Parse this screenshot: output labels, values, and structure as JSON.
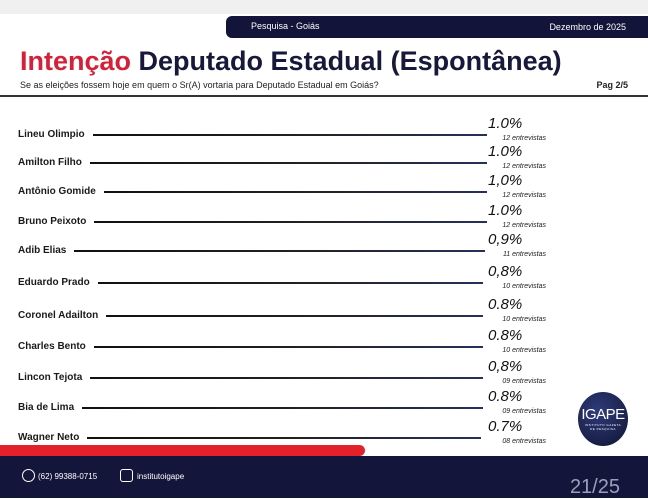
{
  "header": {
    "left": "Pesquisa - Goiás",
    "right": "Dezembro de 2025"
  },
  "title": {
    "highlight": "Intenção",
    "rest": "Deputado Estadual (Espontânea)"
  },
  "subtitle": "Se as eleições fossem hoje em quem o Sr(A) vortaria para Deputado Estadual em Goiás?",
  "page_label": "Pag 2/5",
  "chart_data": {
    "type": "bar",
    "title": "Intenção Deputado Estadual (Espontânea)",
    "categories": [
      "Lineu Olimpio",
      "Amilton Filho",
      "Antônio Gomide",
      "Bruno Peixoto",
      "Adib Elias",
      "Eduardo Prado",
      "Coronel Adailton",
      "Charles Bento",
      "Lincon Tejota",
      "Bia de Lima",
      "Wagner Neto"
    ],
    "labels": [
      "1.0%",
      "1.0%",
      "1,0%",
      "1.0%",
      "0,9%",
      "0,8%",
      "0.8%",
      "0.8%",
      "0,8%",
      "0.8%",
      "0.7%"
    ],
    "values": [
      1.0,
      1.0,
      1.0,
      1.0,
      0.9,
      0.8,
      0.8,
      0.8,
      0.8,
      0.8,
      0.7
    ],
    "interviews": [
      "12 entrevistas",
      "12 entrevistas",
      "12 entrevistas",
      "12 entrevistas",
      "11 entrevistas",
      "10 entrevistas",
      "10 entrevistas",
      "10 entrevistas",
      "09 entrevistas",
      "09 entrevistas",
      "08 entrevistas"
    ],
    "unit": "%"
  },
  "logo": {
    "text": "IGAPE",
    "subtext": "INSTITUTO GAZETA DE PESQUISA"
  },
  "footer": {
    "phone": "(62) 99388-0715",
    "instagram": "institutoigape",
    "page": "21/25"
  }
}
